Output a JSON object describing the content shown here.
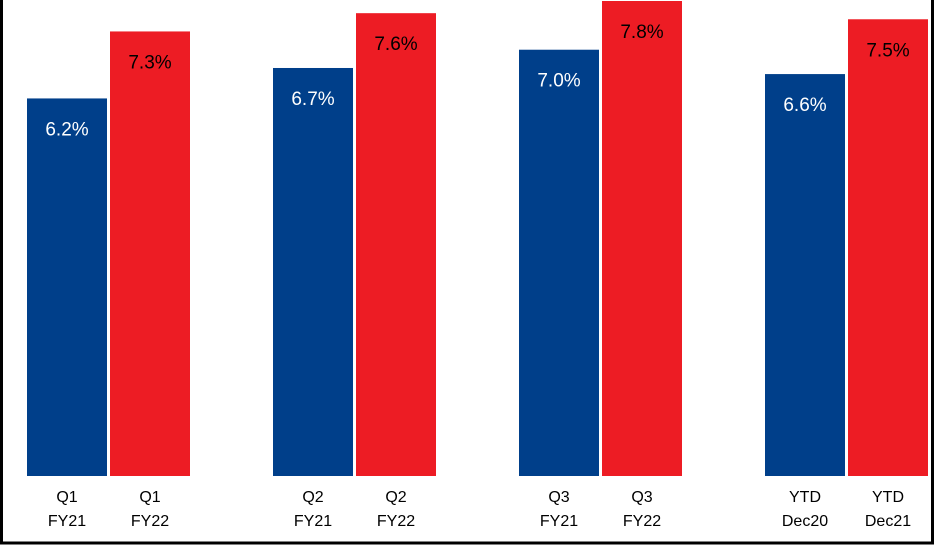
{
  "chart_data": {
    "type": "bar",
    "categories": [
      [
        "Q1",
        "FY21"
      ],
      [
        "Q1",
        "FY22"
      ],
      [
        "Q2",
        "FY21"
      ],
      [
        "Q2",
        "FY22"
      ],
      [
        "Q3",
        "FY21"
      ],
      [
        "Q3",
        "FY22"
      ],
      [
        "YTD",
        "Dec20"
      ],
      [
        "YTD",
        "Dec21"
      ]
    ],
    "values": [
      6.2,
      7.3,
      6.7,
      7.6,
      7.0,
      7.8,
      6.6,
      7.5
    ],
    "value_labels": [
      "6.2%",
      "7.3%",
      "6.7%",
      "7.6%",
      "7.0%",
      "7.8%",
      "6.6%",
      "7.5%"
    ],
    "colors": [
      "#003f8a",
      "#ed1c24",
      "#003f8a",
      "#ed1c24",
      "#003f8a",
      "#ed1c24",
      "#003f8a",
      "#ed1c24"
    ]
  }
}
